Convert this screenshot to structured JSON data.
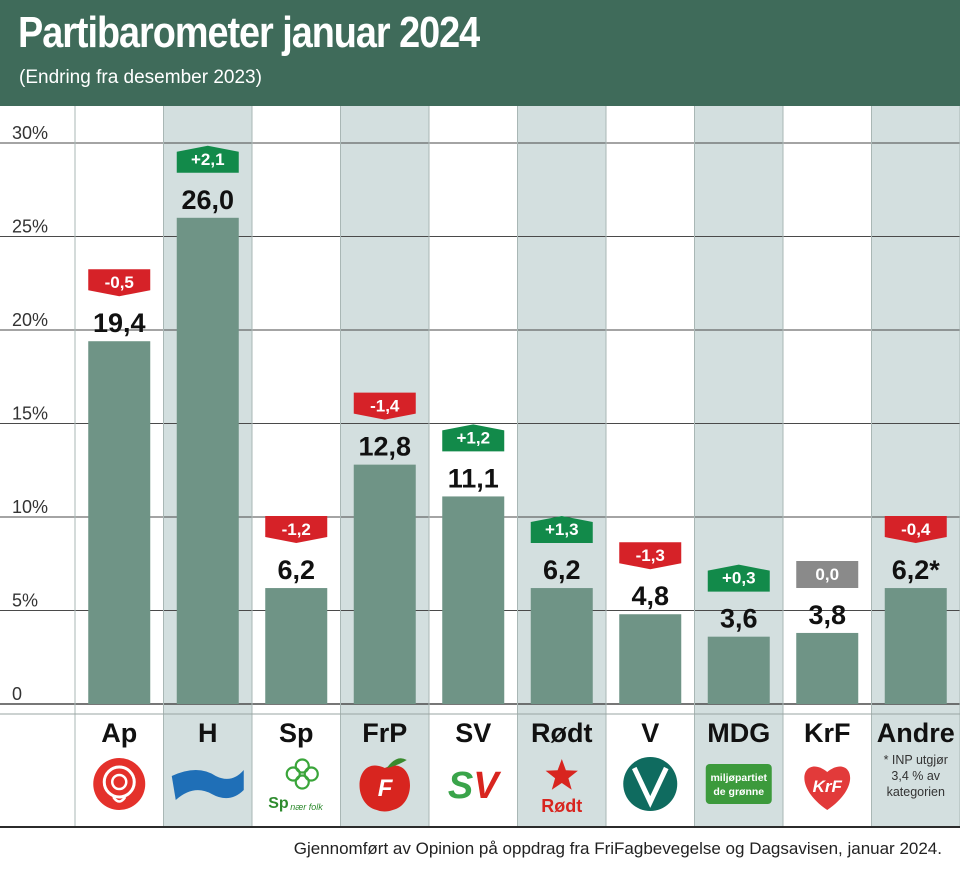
{
  "header": {
    "title": "Partibarometer januar 2024",
    "subtitle": "(Endring fra desember 2023)"
  },
  "footer": {
    "credit": "Gjennomført av Opinion på oppdrag fra FriFagbevegelse og Dagsavisen, januar 2024."
  },
  "colors": {
    "header_bg": "#3f6b5a",
    "bar": "#6f9486",
    "band_shaded": "#d3dfdf",
    "increase": "#128a4a",
    "decrease": "#d62228",
    "unchanged": "#8a8a8a"
  },
  "chart_data": {
    "type": "bar",
    "title": "Partibarometer januar 2024",
    "subtitle": "(Endring fra desember 2023)",
    "categories": [
      "Ap",
      "H",
      "Sp",
      "FrP",
      "SV",
      "Rødt",
      "V",
      "MDG",
      "KrF",
      "Andre"
    ],
    "values": [
      19.4,
      26.0,
      6.2,
      12.8,
      11.1,
      6.2,
      4.8,
      3.6,
      3.8,
      6.2
    ],
    "value_labels": [
      "19,4",
      "26,0",
      "6,2",
      "12,8",
      "11,1",
      "6,2",
      "4,8",
      "3,6",
      "3,8",
      "6,2*"
    ],
    "changes": [
      -0.5,
      2.1,
      -1.2,
      -1.4,
      1.2,
      1.3,
      -1.3,
      0.3,
      0.0,
      -0.4
    ],
    "change_labels": [
      "-0,5",
      "+2,1",
      "-1,2",
      "-1,4",
      "+1,2",
      "+1,3",
      "-1,3",
      "+0,3",
      "0,0",
      "-0,4"
    ],
    "ylim": [
      0,
      30
    ],
    "yticks": [
      0,
      5,
      10,
      15,
      20,
      25,
      30
    ],
    "ytick_labels": [
      "0",
      "5%",
      "10%",
      "15%",
      "20%",
      "25%",
      "30%"
    ],
    "grid": true,
    "xlabel": "",
    "ylabel": "",
    "footnote": "* INP utgjør 3,4 % av kategorien",
    "footnote_lines": [
      "* INP utgjør",
      "3,4 % av",
      "kategorien"
    ],
    "logo_texts": {
      "Sp": "Sp",
      "Sp_tagline": "nær folk",
      "SV": "SV",
      "Rødt": "Rødt",
      "MDG_line1": "miljøpartiet",
      "MDG_line2": "de grønne",
      "KrF": "KrF"
    },
    "logo_icons": [
      "rose-logo-icon",
      "flag-logo-icon",
      "clover-logo-icon",
      "apple-logo-icon",
      "sv-logo-icon",
      "star-logo-icon",
      "v-circle-logo-icon",
      "mdg-logo-icon",
      "heart-logo-icon"
    ]
  }
}
